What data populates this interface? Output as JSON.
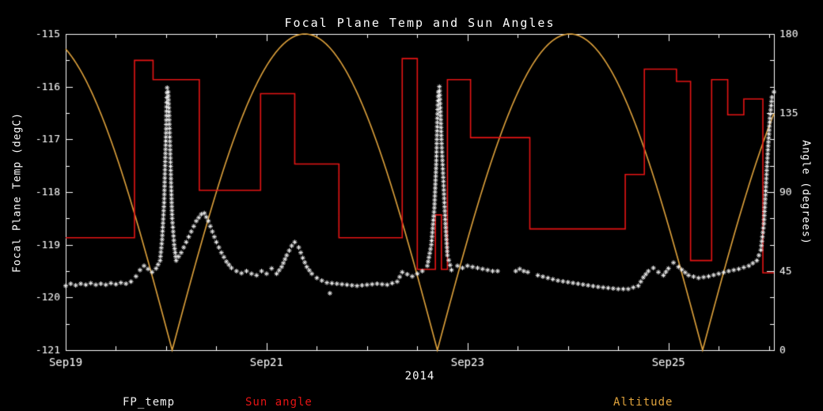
{
  "title": "Focal Plane Temp and Sun Angles",
  "legend": [
    {
      "label": "FP_temp",
      "color": "#f2f2f2"
    },
    {
      "label": "Sun angle",
      "color": "#e51414"
    },
    {
      "label": "Altitude",
      "color": "#e0a33c"
    }
  ],
  "chart_data": {
    "type": "line",
    "title": "Focal Plane Temp and Sun Angles",
    "xlabel": "2014",
    "background": "#000000",
    "frame_color": "#ffffff",
    "x_range_days": [
      0,
      7.05
    ],
    "x_ticks": [
      {
        "t": 0,
        "label": "Sep19"
      },
      {
        "t": 2,
        "label": "Sep21"
      },
      {
        "t": 4,
        "label": "Sep23"
      },
      {
        "t": 6,
        "label": "Sep25"
      }
    ],
    "x_minor_step": 0.5,
    "y_left": {
      "label": "Focal Plane Temp (degC)",
      "range": [
        -121,
        -115
      ],
      "major_step": 1,
      "minor_step": 0.5
    },
    "y_right": {
      "label": "Angle (degrees)",
      "range": [
        0,
        180
      ],
      "major_step": 45,
      "minor_step": 15
    },
    "series": [
      {
        "name": "Altitude",
        "axis": "right",
        "style": "abs-sine",
        "color": "#e0a33c",
        "peak": 180,
        "cusps": [
          1.06,
          3.7,
          6.34
        ]
      },
      {
        "name": "Sun angle",
        "axis": "right",
        "style": "step",
        "color": "#e51414",
        "steps": [
          [
            0.0,
            64
          ],
          [
            0.685,
            165
          ],
          [
            0.87,
            154
          ],
          [
            1.33,
            91
          ],
          [
            1.94,
            146
          ],
          [
            2.28,
            106
          ],
          [
            2.72,
            64
          ],
          [
            3.35,
            166
          ],
          [
            3.5,
            46
          ],
          [
            3.68,
            77
          ],
          [
            3.74,
            46
          ],
          [
            3.8,
            154
          ],
          [
            4.03,
            121
          ],
          [
            4.62,
            69
          ],
          [
            5.57,
            100
          ],
          [
            5.76,
            160
          ],
          [
            6.08,
            153
          ],
          [
            6.22,
            51
          ],
          [
            6.43,
            154
          ],
          [
            6.59,
            134
          ],
          [
            6.75,
            143
          ],
          [
            6.94,
            44
          ]
        ]
      },
      {
        "name": "FP_temp",
        "axis": "left",
        "style": "asterisk-scatter",
        "color": "#f2f2f2",
        "points": [
          [
            0.0,
            -119.78
          ],
          [
            0.05,
            -119.74
          ],
          [
            0.1,
            -119.77
          ],
          [
            0.15,
            -119.74
          ],
          [
            0.2,
            -119.76
          ],
          [
            0.25,
            -119.73
          ],
          [
            0.3,
            -119.76
          ],
          [
            0.35,
            -119.74
          ],
          [
            0.4,
            -119.76
          ],
          [
            0.45,
            -119.73
          ],
          [
            0.5,
            -119.75
          ],
          [
            0.55,
            -119.72
          ],
          [
            0.6,
            -119.74
          ],
          [
            0.65,
            -119.7
          ],
          [
            0.7,
            -119.6
          ],
          [
            0.74,
            -119.48
          ],
          [
            0.78,
            -119.4
          ],
          [
            0.82,
            -119.46
          ],
          [
            0.86,
            -119.52
          ],
          [
            0.9,
            -119.45
          ],
          [
            0.94,
            -119.3
          ],
          [
            0.96,
            -118.9
          ],
          [
            0.98,
            -118.2
          ],
          [
            0.99,
            -117.5
          ],
          [
            1.0,
            -116.8
          ],
          [
            1.005,
            -116.3
          ],
          [
            1.01,
            -116.02
          ],
          [
            1.02,
            -116.1
          ],
          [
            1.03,
            -116.55
          ],
          [
            1.04,
            -117.2
          ],
          [
            1.05,
            -117.9
          ],
          [
            1.06,
            -118.5
          ],
          [
            1.08,
            -119.0
          ],
          [
            1.1,
            -119.3
          ],
          [
            1.15,
            -119.15
          ],
          [
            1.2,
            -118.95
          ],
          [
            1.25,
            -118.75
          ],
          [
            1.3,
            -118.55
          ],
          [
            1.35,
            -118.42
          ],
          [
            1.38,
            -118.4
          ],
          [
            1.42,
            -118.55
          ],
          [
            1.46,
            -118.75
          ],
          [
            1.5,
            -118.95
          ],
          [
            1.55,
            -119.15
          ],
          [
            1.6,
            -119.32
          ],
          [
            1.65,
            -119.44
          ],
          [
            1.7,
            -119.5
          ],
          [
            1.75,
            -119.54
          ],
          [
            1.8,
            -119.5
          ],
          [
            1.85,
            -119.55
          ],
          [
            1.9,
            -119.58
          ],
          [
            1.95,
            -119.5
          ],
          [
            2.0,
            -119.55
          ],
          [
            2.05,
            -119.45
          ],
          [
            2.1,
            -119.55
          ],
          [
            2.15,
            -119.42
          ],
          [
            2.2,
            -119.2
          ],
          [
            2.25,
            -119.02
          ],
          [
            2.28,
            -118.95
          ],
          [
            2.32,
            -119.05
          ],
          [
            2.36,
            -119.25
          ],
          [
            2.4,
            -119.42
          ],
          [
            2.45,
            -119.55
          ],
          [
            2.5,
            -119.63
          ],
          [
            2.55,
            -119.68
          ],
          [
            2.6,
            -119.72
          ],
          [
            2.7,
            -119.74
          ],
          [
            2.8,
            -119.76
          ],
          [
            2.9,
            -119.78
          ],
          [
            3.0,
            -119.76
          ],
          [
            3.1,
            -119.74
          ],
          [
            3.2,
            -119.76
          ],
          [
            3.3,
            -119.7
          ],
          [
            3.35,
            -119.52
          ],
          [
            3.4,
            -119.56
          ],
          [
            3.45,
            -119.6
          ],
          [
            3.5,
            -119.55
          ],
          [
            3.55,
            -119.5
          ],
          [
            3.6,
            -119.4
          ],
          [
            3.64,
            -119.0
          ],
          [
            3.67,
            -118.3
          ],
          [
            3.69,
            -117.4
          ],
          [
            3.7,
            -116.6
          ],
          [
            3.71,
            -116.1
          ],
          [
            3.72,
            -116.0
          ],
          [
            3.73,
            -116.4
          ],
          [
            3.74,
            -117.0
          ],
          [
            3.76,
            -117.8
          ],
          [
            3.78,
            -118.6
          ],
          [
            3.8,
            -119.2
          ],
          [
            3.84,
            -119.48
          ],
          [
            3.9,
            -119.4
          ],
          [
            3.95,
            -119.44
          ],
          [
            4.0,
            -119.4
          ],
          [
            4.05,
            -119.42
          ],
          [
            4.1,
            -119.44
          ],
          [
            4.15,
            -119.46
          ],
          [
            4.2,
            -119.48
          ],
          [
            4.25,
            -119.5
          ],
          [
            4.3,
            -119.5
          ],
          null,
          [
            4.48,
            -119.5
          ],
          [
            4.52,
            -119.46
          ],
          [
            4.56,
            -119.5
          ],
          [
            4.6,
            -119.52
          ],
          null,
          [
            4.7,
            -119.58
          ],
          [
            4.8,
            -119.63
          ],
          [
            4.9,
            -119.68
          ],
          [
            5.0,
            -119.71
          ],
          [
            5.1,
            -119.74
          ],
          [
            5.2,
            -119.77
          ],
          [
            5.3,
            -119.8
          ],
          [
            5.4,
            -119.82
          ],
          [
            5.5,
            -119.84
          ],
          [
            5.6,
            -119.84
          ],
          [
            5.7,
            -119.78
          ],
          [
            5.75,
            -119.62
          ],
          [
            5.8,
            -119.5
          ],
          [
            5.85,
            -119.44
          ],
          [
            5.9,
            -119.52
          ],
          [
            5.95,
            -119.58
          ],
          [
            6.0,
            -119.45
          ],
          [
            6.05,
            -119.34
          ],
          [
            6.1,
            -119.42
          ],
          [
            6.2,
            -119.58
          ],
          [
            6.3,
            -119.63
          ],
          [
            6.4,
            -119.6
          ],
          [
            6.5,
            -119.55
          ],
          [
            6.6,
            -119.5
          ],
          [
            6.7,
            -119.46
          ],
          [
            6.8,
            -119.4
          ],
          [
            6.88,
            -119.3
          ],
          [
            6.92,
            -119.1
          ],
          [
            6.95,
            -118.6
          ],
          [
            6.97,
            -117.9
          ],
          [
            6.99,
            -117.2
          ],
          [
            7.01,
            -116.6
          ],
          [
            7.03,
            -116.2
          ],
          [
            7.05,
            -116.1
          ]
        ],
        "outliers": [
          [
            2.63,
            -119.92
          ]
        ]
      }
    ]
  }
}
